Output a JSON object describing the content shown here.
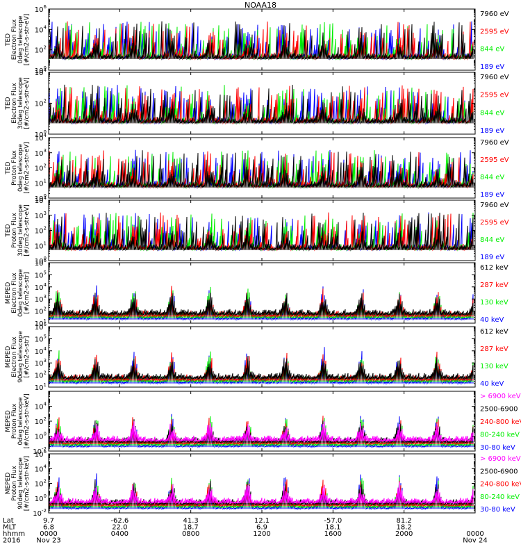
{
  "title": "NOAA18",
  "colors": {
    "black": "#000000",
    "red": "#ff0000",
    "green": "#00ee00",
    "blue": "#0000ff",
    "magenta": "#ff00ff"
  },
  "chart_data": [
    {
      "type": "line",
      "ylabel": [
        "TED",
        "Electron Flux",
        "0deg telescope",
        "[#/cm2-s-str-eV]"
      ],
      "ylim": [
        1,
        1000000
      ],
      "log": true,
      "ticks": [
        {
          "base": "10",
          "exp": "0"
        },
        {
          "base": "10",
          "exp": "2"
        },
        {
          "base": "10",
          "exp": "4"
        },
        {
          "base": "10",
          "exp": "6"
        }
      ],
      "series": [
        {
          "name": "7960 eV",
          "color": "#000000"
        },
        {
          "name": "2595 eV",
          "color": "#ff0000"
        },
        {
          "name": "844 eV",
          "color": "#00ee00"
        },
        {
          "name": "189 eV",
          "color": "#0000ff"
        }
      ]
    },
    {
      "type": "line",
      "ylabel": [
        "TED",
        "Electron Flux",
        "30deg telescope",
        "[#/cm2-s-str-eV]"
      ],
      "ylim": [
        1,
        10000
      ],
      "log": true,
      "ticks": [
        {
          "base": "10",
          "exp": "0"
        },
        {
          "base": "10",
          "exp": "2"
        },
        {
          "base": "10",
          "exp": "4"
        }
      ],
      "series": [
        {
          "name": "7960 eV",
          "color": "#000000"
        },
        {
          "name": "2595 eV",
          "color": "#ff0000"
        },
        {
          "name": "844 eV",
          "color": "#00ee00"
        },
        {
          "name": "189 eV",
          "color": "#0000ff"
        }
      ]
    },
    {
      "type": "line",
      "ylabel": [
        "TED",
        "Proton Flux",
        "0deg telescope",
        "[#/cm2-s-str-eV]"
      ],
      "ylim": [
        1,
        10000
      ],
      "log": true,
      "ticks": [
        {
          "base": "10",
          "exp": "0"
        },
        {
          "base": "10",
          "exp": "1"
        },
        {
          "base": "10",
          "exp": "2"
        },
        {
          "base": "10",
          "exp": "3"
        },
        {
          "base": "10",
          "exp": "4"
        }
      ],
      "series": [
        {
          "name": "7960 eV",
          "color": "#000000"
        },
        {
          "name": "2595 eV",
          "color": "#ff0000"
        },
        {
          "name": "844 eV",
          "color": "#00ee00"
        },
        {
          "name": "189 eV",
          "color": "#0000ff"
        }
      ]
    },
    {
      "type": "line",
      "ylabel": [
        "TED",
        "Proton Flux",
        "30deg telescope",
        "[#/cm2-s-str-eV]"
      ],
      "ylim": [
        1,
        10000
      ],
      "log": true,
      "ticks": [
        {
          "base": "10",
          "exp": "0"
        },
        {
          "base": "10",
          "exp": "1"
        },
        {
          "base": "10",
          "exp": "2"
        },
        {
          "base": "10",
          "exp": "3"
        },
        {
          "base": "10",
          "exp": "4"
        }
      ],
      "series": [
        {
          "name": "7960 eV",
          "color": "#000000"
        },
        {
          "name": "2595 eV",
          "color": "#ff0000"
        },
        {
          "name": "844 eV",
          "color": "#00ee00"
        },
        {
          "name": "189 eV",
          "color": "#0000ff"
        }
      ]
    },
    {
      "type": "line",
      "ylabel": [
        "MEPED",
        "Electron Flux",
        "0deg telescope",
        "[#/cm2-s-str]"
      ],
      "ylim": [
        10,
        1000000
      ],
      "log": true,
      "ticks": [
        {
          "base": "10",
          "exp": "1"
        },
        {
          "base": "10",
          "exp": "2"
        },
        {
          "base": "10",
          "exp": "3"
        },
        {
          "base": "10",
          "exp": "4"
        },
        {
          "base": "10",
          "exp": "5"
        },
        {
          "base": "10",
          "exp": "6"
        }
      ],
      "series": [
        {
          "name": "612 keV",
          "color": "#000000"
        },
        {
          "name": "287 keV",
          "color": "#ff0000"
        },
        {
          "name": "130 keV",
          "color": "#00ee00"
        },
        {
          "name": "40 keV",
          "color": "#0000ff"
        }
      ]
    },
    {
      "type": "line",
      "ylabel": [
        "MEPED",
        "Electron Flux",
        "90deg telescope",
        "[#/cm2-s-str]"
      ],
      "ylim": [
        10,
        1000000
      ],
      "log": true,
      "ticks": [
        {
          "base": "10",
          "exp": "1"
        },
        {
          "base": "10",
          "exp": "2"
        },
        {
          "base": "10",
          "exp": "3"
        },
        {
          "base": "10",
          "exp": "4"
        },
        {
          "base": "10",
          "exp": "5"
        },
        {
          "base": "10",
          "exp": "6"
        }
      ],
      "series": [
        {
          "name": "612 keV",
          "color": "#000000"
        },
        {
          "name": "287 keV",
          "color": "#ff0000"
        },
        {
          "name": "130 keV",
          "color": "#00ee00"
        },
        {
          "name": "40 keV",
          "color": "#0000ff"
        }
      ]
    },
    {
      "type": "line",
      "ylabel": [
        "MEPED",
        "Proton Flux",
        "0deg telescope",
        "[#/cm2-s-str-keV]"
      ],
      "ylim": [
        0.01,
        1000000
      ],
      "log": true,
      "ticks": [
        {
          "base": "10",
          "exp": "-2"
        },
        {
          "base": "10",
          "exp": "0"
        },
        {
          "base": "10",
          "exp": "2"
        },
        {
          "base": "10",
          "exp": "4"
        }
      ],
      "series": [
        {
          "name": "> 6900 keV",
          "color": "#ff00ff"
        },
        {
          "name": "2500-6900",
          "color": "#000000"
        },
        {
          "name": "240-800 keV",
          "color": "#ff0000"
        },
        {
          "name": "80-240 keV",
          "color": "#00ee00"
        },
        {
          "name": "30-80 keV",
          "color": "#0000ff"
        }
      ]
    },
    {
      "type": "line",
      "ylabel": [
        "MEPED",
        "Proton Flux",
        "90deg telescope",
        "[#/cm2-s-str-keV]"
      ],
      "ylim": [
        0.01,
        1000000
      ],
      "log": true,
      "ticks": [
        {
          "base": "10",
          "exp": "-2"
        },
        {
          "base": "10",
          "exp": "0"
        },
        {
          "base": "10",
          "exp": "2"
        },
        {
          "base": "10",
          "exp": "4"
        },
        {
          "base": "10",
          "exp": "6"
        }
      ],
      "series": [
        {
          "name": "> 6900 keV",
          "color": "#ff00ff"
        },
        {
          "name": "2500-6900",
          "color": "#000000"
        },
        {
          "name": "240-800 keV",
          "color": "#ff0000"
        },
        {
          "name": "80-240 keV",
          "color": "#00ee00"
        },
        {
          "name": "30-80 keV",
          "color": "#0000ff"
        }
      ]
    }
  ],
  "xaxis": {
    "row_labels": [
      "Lat",
      "MLT",
      "hhmm",
      "2016"
    ],
    "columns": [
      {
        "lat": "9.7",
        "mlt": "6.8",
        "hhmm": "0000",
        "date": "Nov 23"
      },
      {
        "lat": "-62.6",
        "mlt": "22.0",
        "hhmm": "0400",
        "date": ""
      },
      {
        "lat": "41.3",
        "mlt": "18.7",
        "hhmm": "0800",
        "date": ""
      },
      {
        "lat": "12.1",
        "mlt": "6.9",
        "hhmm": "1200",
        "date": ""
      },
      {
        "lat": "-57.0",
        "mlt": "18.1",
        "hhmm": "1600",
        "date": ""
      },
      {
        "lat": "81.2",
        "mlt": "18.2",
        "hhmm": "2000",
        "date": ""
      },
      {
        "lat": "",
        "mlt": "",
        "hhmm": "0000",
        "date": "Nov 24"
      }
    ]
  }
}
